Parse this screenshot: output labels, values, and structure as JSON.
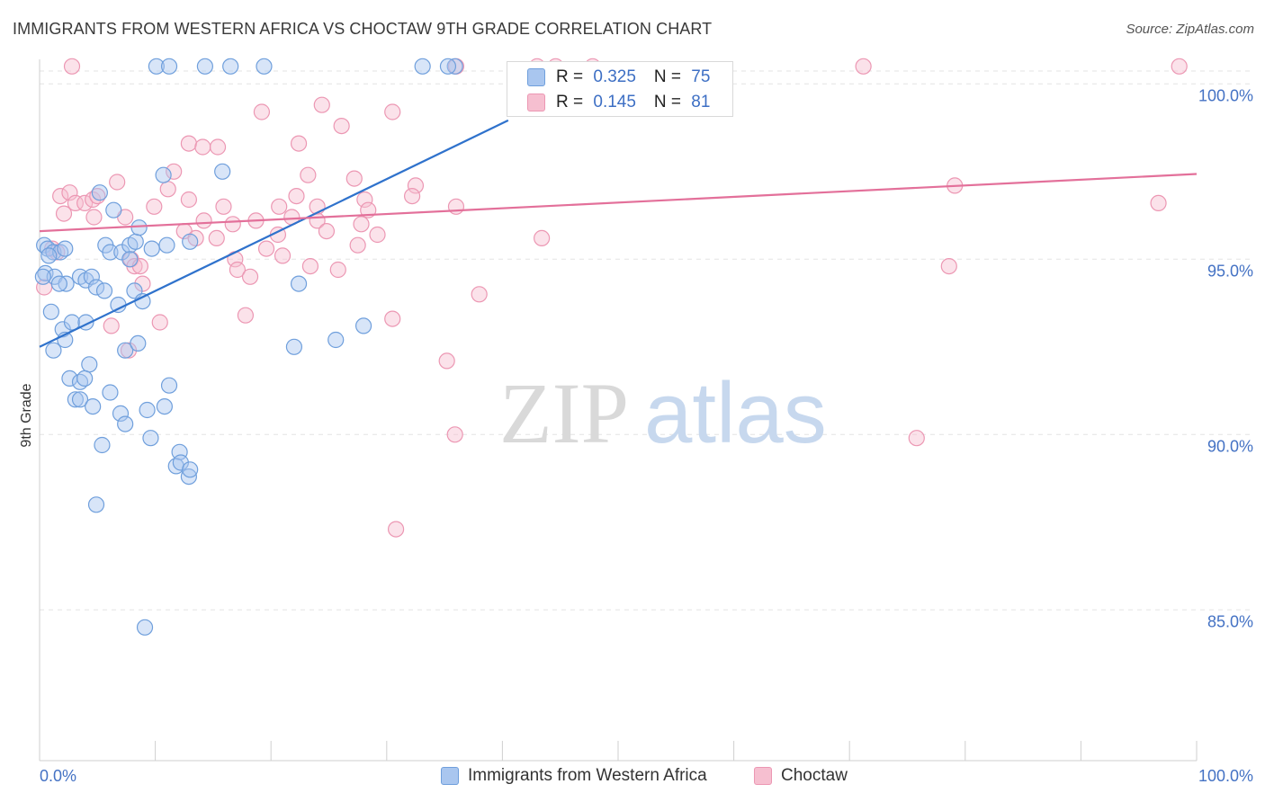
{
  "title": "IMMIGRANTS FROM WESTERN AFRICA VS CHOCTAW 9TH GRADE CORRELATION CHART",
  "source": "Source: ZipAtlas.com",
  "watermark": {
    "zip": "ZIP",
    "atlas": "atlas"
  },
  "colors": {
    "blue_fill": "#a9c6ef",
    "blue_stroke": "#6f9fdc",
    "blue_line": "#2f72cc",
    "pink_fill": "#f6bfd0",
    "pink_stroke": "#ec97b3",
    "pink_line": "#e3709a",
    "grid": "#e3e3e3",
    "axis_text": "#4472c4"
  },
  "stats": {
    "rows": [
      {
        "r_label": "R = ",
        "r_value": "0.325",
        "n_label": "N = ",
        "n_value": "75",
        "swatch": "blue"
      },
      {
        "r_label": "R = ",
        "r_value": "0.145",
        "n_label": "N = ",
        "n_value": "81",
        "swatch": "pink"
      }
    ]
  },
  "legend": {
    "items": [
      {
        "label": "Immigrants from Western Africa",
        "swatch": "blue"
      },
      {
        "label": "Choctaw",
        "swatch": "pink"
      }
    ]
  },
  "chart_data": {
    "type": "scatter",
    "title": "IMMIGRANTS FROM WESTERN AFRICA VS CHOCTAW 9TH GRADE CORRELATION CHART",
    "xlabel": "",
    "ylabel": "9th Grade",
    "xlim": [
      0,
      100
    ],
    "ylim": [
      80.7,
      100.7
    ],
    "x_tick_labels": [
      "0.0%",
      "100.0%"
    ],
    "y_ticks": [
      {
        "value": 100,
        "label": "100.0%"
      },
      {
        "value": 95,
        "label": "95.0%"
      },
      {
        "value": 90,
        "label": "90.0%"
      },
      {
        "value": 85,
        "label": "85.0%"
      }
    ],
    "series": [
      {
        "name": "Immigrants from Western Africa",
        "color": "blue",
        "trend": {
          "x": [
            0,
            40.5
          ],
          "y": [
            92.5,
            98.96
          ]
        },
        "points": [
          [
            10.1,
            100.5
          ],
          [
            11.2,
            100.5
          ],
          [
            14.3,
            100.5
          ],
          [
            16.5,
            100.5
          ],
          [
            19.4,
            100.5
          ],
          [
            33.1,
            100.5
          ],
          [
            35.9,
            100.5
          ],
          [
            35.3,
            100.5
          ],
          [
            5.2,
            96.9
          ],
          [
            6.4,
            96.4
          ],
          [
            10.7,
            97.4
          ],
          [
            15.8,
            97.5
          ],
          [
            0.4,
            95.4
          ],
          [
            0.7,
            95.3
          ],
          [
            1.2,
            95.2
          ],
          [
            1.8,
            95.2
          ],
          [
            5.7,
            95.4
          ],
          [
            6.1,
            95.2
          ],
          [
            7.1,
            95.2
          ],
          [
            7.8,
            95.4
          ],
          [
            8.3,
            95.5
          ],
          [
            8.6,
            95.9
          ],
          [
            9.7,
            95.3
          ],
          [
            11.0,
            95.4
          ],
          [
            13.0,
            95.5
          ],
          [
            7.8,
            95.0
          ],
          [
            0.5,
            94.6
          ],
          [
            1.3,
            94.5
          ],
          [
            2.3,
            94.3
          ],
          [
            3.5,
            94.5
          ],
          [
            4.0,
            94.4
          ],
          [
            4.5,
            94.5
          ],
          [
            4.9,
            94.2
          ],
          [
            5.6,
            94.1
          ],
          [
            6.8,
            93.7
          ],
          [
            8.2,
            94.1
          ],
          [
            8.9,
            93.8
          ],
          [
            1.7,
            94.3
          ],
          [
            1.0,
            93.5
          ],
          [
            2.0,
            93.0
          ],
          [
            2.2,
            92.7
          ],
          [
            2.8,
            93.2
          ],
          [
            4.0,
            93.2
          ],
          [
            7.4,
            92.4
          ],
          [
            8.5,
            92.6
          ],
          [
            1.2,
            92.4
          ],
          [
            4.3,
            92.0
          ],
          [
            2.6,
            91.6
          ],
          [
            3.5,
            91.5
          ],
          [
            3.9,
            91.6
          ],
          [
            11.2,
            91.4
          ],
          [
            6.1,
            91.2
          ],
          [
            3.1,
            91.0
          ],
          [
            3.5,
            91.0
          ],
          [
            4.6,
            90.8
          ],
          [
            7.0,
            90.6
          ],
          [
            9.3,
            90.7
          ],
          [
            10.8,
            90.8
          ],
          [
            7.4,
            90.3
          ],
          [
            9.6,
            89.9
          ],
          [
            5.4,
            89.7
          ],
          [
            12.1,
            89.5
          ],
          [
            11.8,
            89.1
          ],
          [
            12.2,
            89.2
          ],
          [
            12.9,
            88.8
          ],
          [
            13.0,
            89.0
          ],
          [
            4.9,
            88.0
          ],
          [
            22.0,
            92.5
          ],
          [
            22.4,
            94.3
          ],
          [
            25.6,
            92.7
          ],
          [
            28.0,
            93.1
          ],
          [
            9.1,
            84.5
          ],
          [
            0.3,
            94.5
          ],
          [
            0.8,
            95.1
          ],
          [
            2.2,
            95.3
          ]
        ]
      },
      {
        "name": "Choctaw",
        "color": "pink",
        "trend": {
          "x": [
            0,
            100
          ],
          "y": [
            95.8,
            97.43
          ]
        },
        "points": [
          [
            2.8,
            100.5
          ],
          [
            36.0,
            100.5
          ],
          [
            43.0,
            100.5
          ],
          [
            44.6,
            100.5
          ],
          [
            47.8,
            100.5
          ],
          [
            71.2,
            100.5
          ],
          [
            98.5,
            100.5
          ],
          [
            19.2,
            99.2
          ],
          [
            24.4,
            99.4
          ],
          [
            26.1,
            98.8
          ],
          [
            30.5,
            99.2
          ],
          [
            12.9,
            98.3
          ],
          [
            14.1,
            98.2
          ],
          [
            15.4,
            98.2
          ],
          [
            22.4,
            98.3
          ],
          [
            6.7,
            97.2
          ],
          [
            11.1,
            97.0
          ],
          [
            11.6,
            97.5
          ],
          [
            23.2,
            97.4
          ],
          [
            27.2,
            97.3
          ],
          [
            32.5,
            97.1
          ],
          [
            32.2,
            96.8
          ],
          [
            79.1,
            97.1
          ],
          [
            1.8,
            96.8
          ],
          [
            2.6,
            96.9
          ],
          [
            3.1,
            96.6
          ],
          [
            3.9,
            96.6
          ],
          [
            4.6,
            96.7
          ],
          [
            5.0,
            96.8
          ],
          [
            9.9,
            96.5
          ],
          [
            12.9,
            96.7
          ],
          [
            15.9,
            96.5
          ],
          [
            20.7,
            96.5
          ],
          [
            22.2,
            96.8
          ],
          [
            24.0,
            96.5
          ],
          [
            28.1,
            96.7
          ],
          [
            28.4,
            96.4
          ],
          [
            36.0,
            96.5
          ],
          [
            96.7,
            96.6
          ],
          [
            2.1,
            96.3
          ],
          [
            4.7,
            96.2
          ],
          [
            7.4,
            96.2
          ],
          [
            14.2,
            96.1
          ],
          [
            16.7,
            96.0
          ],
          [
            18.7,
            96.1
          ],
          [
            21.8,
            96.2
          ],
          [
            24.0,
            96.1
          ],
          [
            27.8,
            96.0
          ],
          [
            12.5,
            95.8
          ],
          [
            13.5,
            95.6
          ],
          [
            15.3,
            95.6
          ],
          [
            20.6,
            95.7
          ],
          [
            24.8,
            95.8
          ],
          [
            29.2,
            95.7
          ],
          [
            43.4,
            95.6
          ],
          [
            1.1,
            95.3
          ],
          [
            1.5,
            95.2
          ],
          [
            7.9,
            95.0
          ],
          [
            16.9,
            95.0
          ],
          [
            19.6,
            95.3
          ],
          [
            21.0,
            95.1
          ],
          [
            27.5,
            95.4
          ],
          [
            8.2,
            94.8
          ],
          [
            8.7,
            94.8
          ],
          [
            17.1,
            94.7
          ],
          [
            18.2,
            94.5
          ],
          [
            23.4,
            94.8
          ],
          [
            25.8,
            94.7
          ],
          [
            78.6,
            94.8
          ],
          [
            0.4,
            94.2
          ],
          [
            8.9,
            94.3
          ],
          [
            38.0,
            94.0
          ],
          [
            10.4,
            93.2
          ],
          [
            17.8,
            93.4
          ],
          [
            30.5,
            93.3
          ],
          [
            6.2,
            93.1
          ],
          [
            7.7,
            92.4
          ],
          [
            35.2,
            92.1
          ],
          [
            35.9,
            90.0
          ],
          [
            75.8,
            89.9
          ],
          [
            30.8,
            87.3
          ]
        ]
      }
    ]
  }
}
